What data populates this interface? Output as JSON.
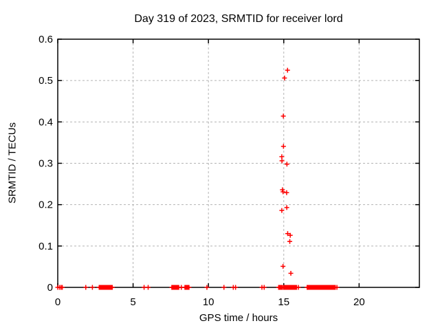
{
  "window": {
    "kind": "gnuplot-chart-image",
    "background": "#ffffff"
  },
  "chart_data": {
    "type": "scatter",
    "title": "Day 319 of 2023, SRMTID for receiver lord",
    "xlabel": "GPS time / hours",
    "ylabel": "SRMTID / TECUs",
    "xlim": [
      0,
      24
    ],
    "ylim": [
      0,
      0.6
    ],
    "xticks": {
      "values": [
        0,
        5,
        10,
        15,
        20
      ],
      "labels": [
        "0",
        "5",
        "10",
        "15",
        "20"
      ]
    },
    "yticks": {
      "values": [
        0,
        0.1,
        0.2,
        0.3,
        0.4,
        0.5,
        0.6
      ],
      "labels": [
        "0",
        "0.1",
        "0.2",
        "0.3",
        "0.4",
        "0.5",
        "0.6"
      ]
    },
    "grid": {
      "visible": true,
      "color": "#b3b3b3",
      "style": "dashed"
    },
    "legend": "none",
    "frame_color": "#000000",
    "series": [
      {
        "name": "SRMTID",
        "marker": "plus",
        "color": "#ff0000",
        "marker_size_px": 7,
        "points": [
          [
            15.25,
            0.525
          ],
          [
            15.05,
            0.506
          ],
          [
            14.97,
            0.414
          ],
          [
            14.98,
            0.341
          ],
          [
            14.87,
            0.316
          ],
          [
            14.88,
            0.306
          ],
          [
            15.21,
            0.298
          ],
          [
            14.91,
            0.236
          ],
          [
            14.95,
            0.231
          ],
          [
            15.19,
            0.229
          ],
          [
            15.2,
            0.193
          ],
          [
            14.87,
            0.186
          ],
          [
            15.26,
            0.13
          ],
          [
            15.43,
            0.126
          ],
          [
            15.4,
            0.111
          ],
          [
            14.95,
            0.051
          ],
          [
            15.47,
            0.034
          ]
        ],
        "zero_singles": [
          0.0,
          0.12,
          0.22,
          0.3,
          1.86,
          2.3,
          5.73,
          6.0,
          8.2,
          9.9,
          11.03,
          11.65,
          11.8,
          13.55,
          13.7,
          15.97,
          18.53
        ],
        "zero_runs": [
          [
            2.75,
            3.62
          ],
          [
            7.57,
            8.03
          ],
          [
            8.44,
            8.71
          ],
          [
            14.66,
            14.92
          ],
          [
            15.0,
            15.85
          ],
          [
            16.55,
            18.42
          ]
        ]
      }
    ]
  }
}
